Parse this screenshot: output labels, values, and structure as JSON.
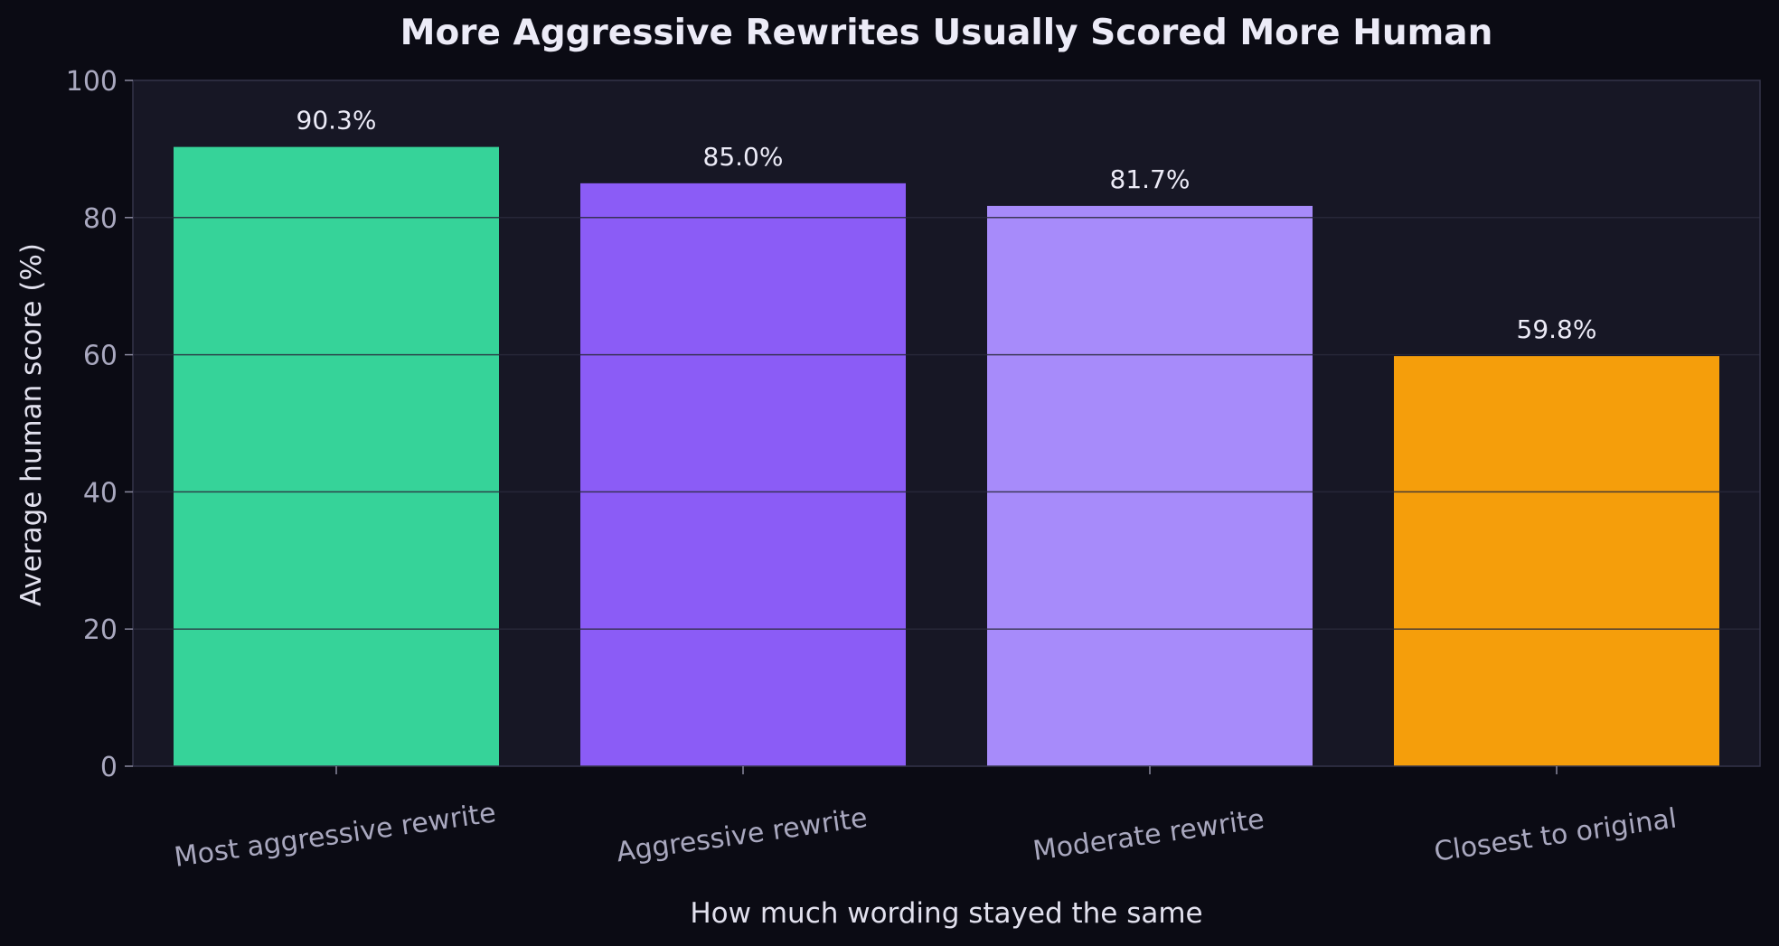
{
  "chart_data": {
    "type": "bar",
    "title": "More Aggressive Rewrites Usually Scored More Human",
    "xlabel": "How much wording stayed the same",
    "ylabel": "Average human score (%)",
    "categories": [
      "Most aggressive rewrite",
      "Aggressive rewrite",
      "Moderate rewrite",
      "Closest to original"
    ],
    "values": [
      90.3,
      85.0,
      81.7,
      59.8
    ],
    "value_labels": [
      "90.3%",
      "85.0%",
      "81.7%",
      "59.8%"
    ],
    "bar_colors": [
      "#36d399",
      "#8b5cf6",
      "#a78bfa",
      "#f59e0b"
    ],
    "ylim": [
      0,
      100
    ],
    "yticks": [
      0,
      20,
      40,
      60,
      80,
      100
    ],
    "grid": true,
    "legend": "none",
    "colors": {
      "page_background": "#0b0b14",
      "plot_background": "#171725",
      "gridline": "#2a2a3c",
      "text": "#ecebf7",
      "tick_text": "#a9a8bf"
    }
  }
}
